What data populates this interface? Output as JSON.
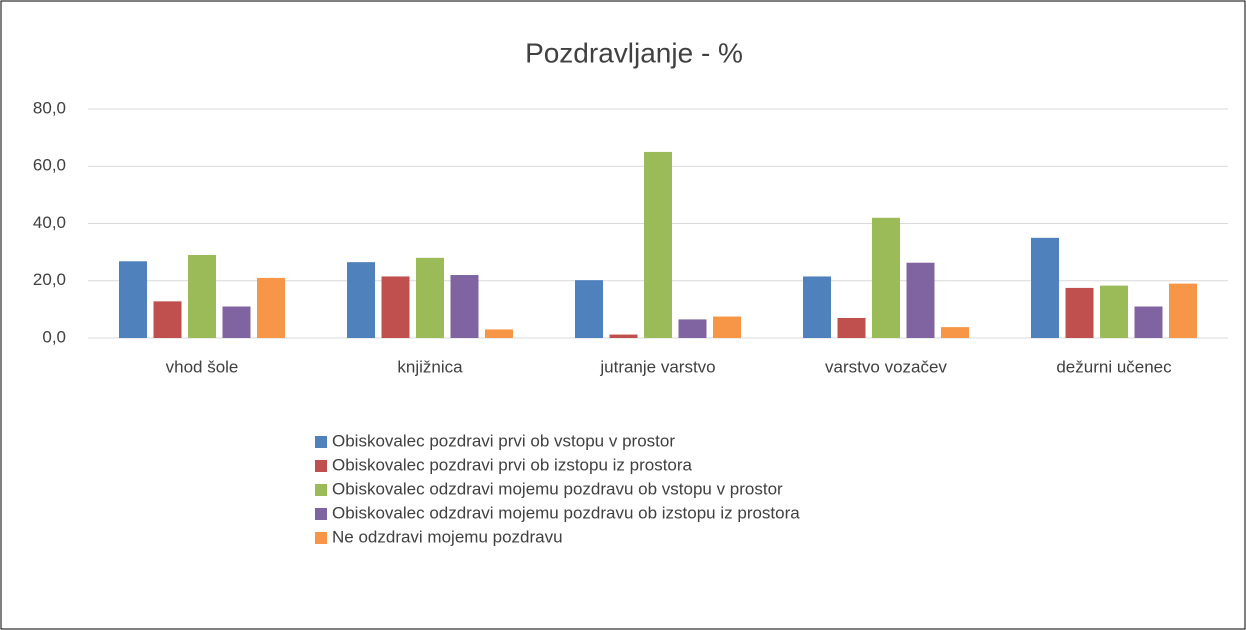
{
  "chart_data": {
    "type": "bar",
    "title": "Pozdravljanje - %",
    "categories": [
      "vhod šole",
      "knjižnica",
      "jutranje varstvo",
      "varstvo vozačev",
      "dežurni učenec"
    ],
    "series": [
      {
        "name": "Obiskovalec pozdravi prvi ob vstopu v prostor",
        "color": "#4f81bd",
        "values": [
          26.8,
          26.5,
          20.2,
          21.5,
          35
        ]
      },
      {
        "name": "Obiskovalec pozdravi prvi ob izstopu iz prostora",
        "color": "#c0504d",
        "values": [
          12.8,
          21.5,
          1.2,
          7,
          17.5
        ]
      },
      {
        "name": "Obiskovalec odzdravi mojemu pozdravu ob vstopu v prostor",
        "color": "#9bbb59",
        "values": [
          29,
          28,
          65,
          42,
          18.3
        ]
      },
      {
        "name": "Obiskovalec odzdravi mojemu pozdravu ob izstopu iz prostora",
        "color": "#8064a2",
        "values": [
          11,
          22,
          6.5,
          26.3,
          11
        ]
      },
      {
        "name": "Ne odzdravi mojemu pozdravu",
        "color": "#f79646",
        "values": [
          21,
          3,
          7.5,
          3.8,
          19
        ]
      }
    ],
    "ylim": [
      0,
      80
    ],
    "yticks": [
      {
        "value": 0,
        "label": "0,0"
      },
      {
        "value": 20,
        "label": "20,0"
      },
      {
        "value": 40,
        "label": "40,0"
      },
      {
        "value": 60,
        "label": "60,0"
      },
      {
        "value": 80,
        "label": "80,0"
      }
    ],
    "grid": true,
    "legend": "bottom"
  }
}
